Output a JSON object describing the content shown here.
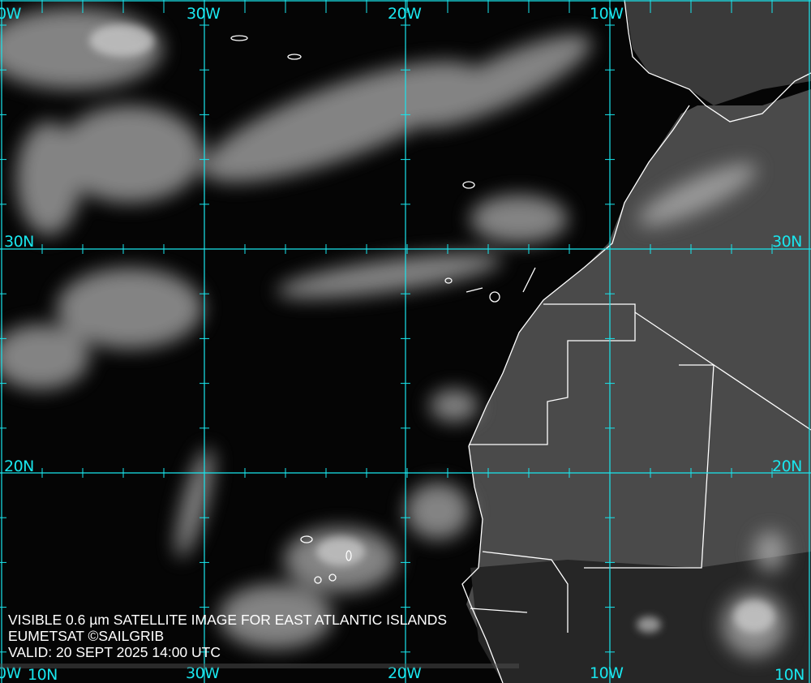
{
  "caption": {
    "line1": "VISIBLE 0.6 µm SATELLITE IMAGE FOR EAST ATLANTIC ISLANDS",
    "line2": "EUMETSAT ©SAILGRIB",
    "line3": "VALID:  20 SEPT 2025 14:00 UTC"
  },
  "grid": {
    "color": "#19e6ee",
    "longitude_labels_top": [
      "0W",
      "30W",
      "20W",
      "10W"
    ],
    "longitude_labels_bottom": [
      "0W",
      "30W",
      "20W",
      "10W"
    ],
    "latitude_labels_left": [
      "30N",
      "20N",
      "10N"
    ],
    "latitude_labels_right": [
      "30N",
      "20N",
      "10N"
    ]
  },
  "map": {
    "type": "satellite visible imagery",
    "region": "East Atlantic, Canary Islands, Cape Verde, NW Africa",
    "coastline_color": "#ffffff"
  }
}
